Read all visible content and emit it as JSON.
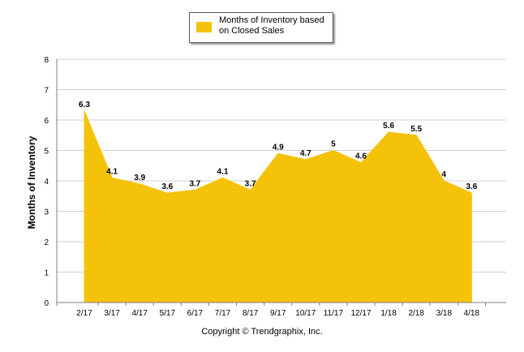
{
  "colors": {
    "area": "#F5C20A",
    "grid": "#d0d0d0",
    "axis": "#7f7f7f",
    "text": "#000000"
  },
  "legend": {
    "label": "Months of Inventory based on Closed Sales",
    "color": "#F5C20A"
  },
  "footer": {
    "copyright": "Copyright © Trendgraphix, Inc."
  },
  "chart_data": {
    "type": "area",
    "title": "",
    "xlabel": "",
    "ylabel": "Months of Inventory",
    "ylim": [
      0,
      8
    ],
    "yticks": [
      "0",
      "1",
      "2",
      "3",
      "4",
      "5",
      "6",
      "7",
      "8"
    ],
    "grid": true,
    "legend_position": "top-center",
    "categories": [
      "2/17",
      "3/17",
      "4/17",
      "5/17",
      "6/17",
      "7/17",
      "8/17",
      "9/17",
      "10/17",
      "11/17",
      "12/17",
      "1/18",
      "2/18",
      "3/18",
      "4/18"
    ],
    "series": [
      {
        "name": "Months of Inventory based on Closed Sales",
        "values": [
          6.3,
          4.1,
          3.9,
          3.6,
          3.7,
          4.1,
          3.7,
          4.9,
          4.7,
          5,
          4.6,
          5.6,
          5.5,
          4,
          3.6
        ],
        "labels": [
          "6.3",
          "4.1",
          "3.9",
          "3.6",
          "3.7",
          "4.1",
          "3.7",
          "4.9",
          "4.7",
          "5",
          "4.6",
          "5.6",
          "5.5",
          "4",
          "3.6"
        ]
      }
    ]
  }
}
